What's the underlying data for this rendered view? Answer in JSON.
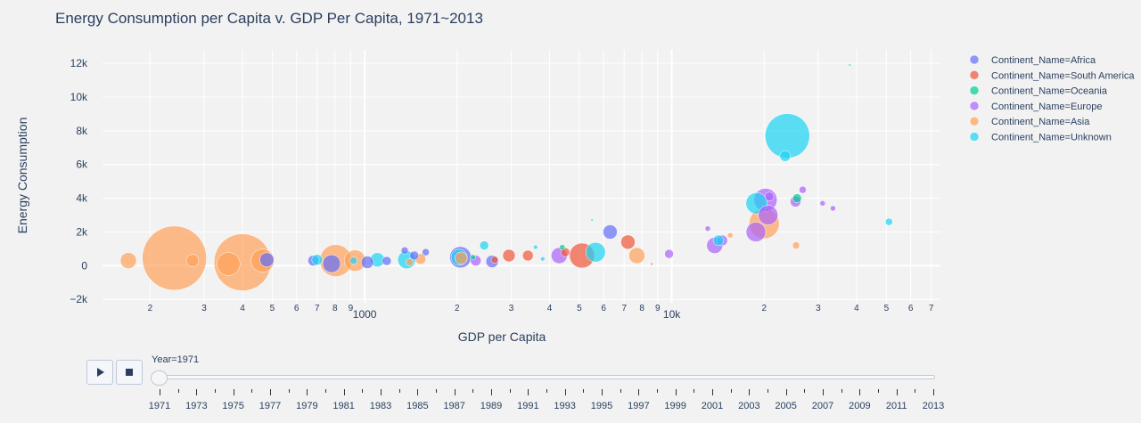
{
  "chart_data": {
    "type": "scatter",
    "title": "Energy Consumption per Capita v. GDP Per Capita, 1971~2013",
    "xlabel": "GDP per Capita",
    "ylabel": "Energy Consumption",
    "x_scale": "log",
    "xlim": [
      140,
      75000
    ],
    "ylim": [
      -2200,
      12800
    ],
    "y_ticks": [
      -2000,
      0,
      2000,
      4000,
      6000,
      8000,
      10000,
      12000
    ],
    "y_tick_labels": [
      "−2k",
      "0",
      "2k",
      "4k",
      "6k",
      "8k",
      "10k",
      "12k"
    ],
    "x_major_ticks": [
      1000,
      10000
    ],
    "x_major_labels": [
      "1000",
      "10k"
    ],
    "x_minor_ticks": [
      200,
      300,
      400,
      500,
      600,
      700,
      800,
      900,
      2000,
      3000,
      4000,
      5000,
      6000,
      7000,
      8000,
      9000,
      20000,
      30000,
      40000,
      50000,
      60000,
      70000
    ],
    "x_minor_labels": [
      "2",
      "3",
      "4",
      "5",
      "6",
      "7",
      "8",
      "9",
      "2",
      "3",
      "4",
      "5",
      "6",
      "7",
      "8",
      "9",
      "2",
      "3",
      "4",
      "5",
      "6",
      "7"
    ],
    "grid": true,
    "legend_position": "right",
    "series": [
      {
        "name": "Continent_Name=Africa",
        "color": "#636efa",
        "points": [
          {
            "x": 480,
            "y": 350,
            "size": 8
          },
          {
            "x": 680,
            "y": 300,
            "size": 6
          },
          {
            "x": 780,
            "y": 120,
            "size": 10
          },
          {
            "x": 1020,
            "y": 200,
            "size": 7
          },
          {
            "x": 1180,
            "y": 280,
            "size": 5
          },
          {
            "x": 1350,
            "y": 900,
            "size": 4
          },
          {
            "x": 1450,
            "y": 600,
            "size": 5
          },
          {
            "x": 1580,
            "y": 800,
            "size": 4
          },
          {
            "x": 2050,
            "y": 500,
            "size": 12
          },
          {
            "x": 2600,
            "y": 250,
            "size": 7
          },
          {
            "x": 6300,
            "y": 2000,
            "size": 8
          }
        ]
      },
      {
        "name": "Continent_Name=South America",
        "color": "#EF553B",
        "points": [
          {
            "x": 2950,
            "y": 600,
            "size": 7
          },
          {
            "x": 3400,
            "y": 600,
            "size": 6
          },
          {
            "x": 4500,
            "y": 800,
            "size": 5
          },
          {
            "x": 5100,
            "y": 600,
            "size": 14
          },
          {
            "x": 7200,
            "y": 1400,
            "size": 8
          },
          {
            "x": 8600,
            "y": 100,
            "size": 1
          },
          {
            "x": 2650,
            "y": 350,
            "size": 4
          }
        ]
      },
      {
        "name": "Continent_Name=Oceania",
        "color": "#00cc96",
        "points": [
          {
            "x": 25600,
            "y": 4000,
            "size": 5
          },
          {
            "x": 2250,
            "y": 500,
            "size": 3
          },
          {
            "x": 4400,
            "y": 1100,
            "size": 3
          }
        ]
      },
      {
        "name": "Continent_Name=Europe",
        "color": "#ab63fa",
        "points": [
          {
            "x": 2300,
            "y": 300,
            "size": 6
          },
          {
            "x": 4300,
            "y": 600,
            "size": 9
          },
          {
            "x": 9800,
            "y": 700,
            "size": 5
          },
          {
            "x": 13100,
            "y": 2200,
            "size": 3
          },
          {
            "x": 13800,
            "y": 1200,
            "size": 9
          },
          {
            "x": 18800,
            "y": 2000,
            "size": 11
          },
          {
            "x": 20600,
            "y": 3000,
            "size": 11
          },
          {
            "x": 20200,
            "y": 3900,
            "size": 13
          },
          {
            "x": 20800,
            "y": 4100,
            "size": 5
          },
          {
            "x": 25300,
            "y": 3800,
            "size": 6
          },
          {
            "x": 26700,
            "y": 4500,
            "size": 4
          },
          {
            "x": 31000,
            "y": 3700,
            "size": 3
          },
          {
            "x": 33500,
            "y": 3400,
            "size": 3
          },
          {
            "x": 14600,
            "y": 1500,
            "size": 6
          }
        ]
      },
      {
        "name": "Continent_Name=Asia",
        "color": "#FFA15A",
        "points": [
          {
            "x": 170,
            "y": 300,
            "size": 9
          },
          {
            "x": 240,
            "y": 450,
            "size": 36
          },
          {
            "x": 275,
            "y": 300,
            "size": 7
          },
          {
            "x": 400,
            "y": 200,
            "size": 32
          },
          {
            "x": 360,
            "y": 100,
            "size": 13
          },
          {
            "x": 465,
            "y": 300,
            "size": 13
          },
          {
            "x": 805,
            "y": 300,
            "size": 18
          },
          {
            "x": 930,
            "y": 300,
            "size": 12
          },
          {
            "x": 1520,
            "y": 400,
            "size": 6
          },
          {
            "x": 1400,
            "y": 200,
            "size": 4
          },
          {
            "x": 7700,
            "y": 600,
            "size": 9
          },
          {
            "x": 20000,
            "y": 2500,
            "size": 17
          },
          {
            "x": 25400,
            "y": 1200,
            "size": 4
          },
          {
            "x": 15500,
            "y": 1800,
            "size": 3
          },
          {
            "x": 2060,
            "y": 450,
            "size": 7
          }
        ]
      },
      {
        "name": "Continent_Name=Unknown",
        "color": "#19d3f3",
        "points": [
          {
            "x": 700,
            "y": 350,
            "size": 6
          },
          {
            "x": 920,
            "y": 300,
            "size": 4
          },
          {
            "x": 1100,
            "y": 350,
            "size": 8
          },
          {
            "x": 1370,
            "y": 350,
            "size": 10
          },
          {
            "x": 2030,
            "y": 500,
            "size": 9
          },
          {
            "x": 2450,
            "y": 1200,
            "size": 5
          },
          {
            "x": 5650,
            "y": 800,
            "size": 11
          },
          {
            "x": 14200,
            "y": 1500,
            "size": 6
          },
          {
            "x": 18900,
            "y": 3700,
            "size": 12
          },
          {
            "x": 23400,
            "y": 6500,
            "size": 6
          },
          {
            "x": 23800,
            "y": 7700,
            "size": 25
          },
          {
            "x": 51000,
            "y": 2600,
            "size": 4
          },
          {
            "x": 3600,
            "y": 1100,
            "size": 2
          },
          {
            "x": 3800,
            "y": 400,
            "size": 2
          },
          {
            "x": 5500,
            "y": 2700,
            "size": 1
          },
          {
            "x": 38000,
            "y": 11900,
            "size": 1
          }
        ]
      }
    ]
  },
  "animation": {
    "current_label": "Year=1971",
    "play_label": "play",
    "stop_label": "stop",
    "years": [
      "1971",
      "1973",
      "1975",
      "1977",
      "1979",
      "1981",
      "1983",
      "1985",
      "1987",
      "1989",
      "1991",
      "1993",
      "1995",
      "1997",
      "1999",
      "2001",
      "2003",
      "2005",
      "2007",
      "2009",
      "2011",
      "2013"
    ]
  }
}
